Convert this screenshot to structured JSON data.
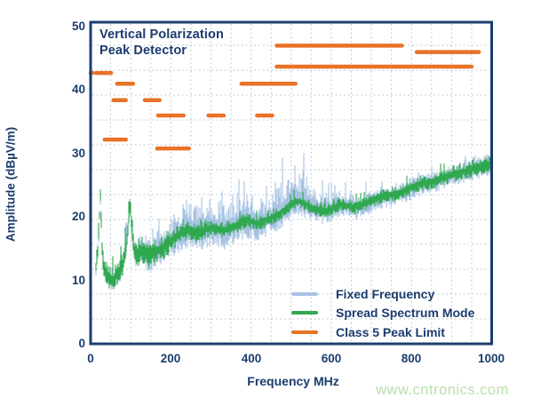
{
  "header": {
    "title_lines": [
      "Vertical Polarization",
      "Peak Detector"
    ]
  },
  "watermark": {
    "text": "www.cntronics.com",
    "color": "#b9dfae"
  },
  "colors": {
    "text_navy": "#1b3c6e",
    "frame": "#1b3c6e",
    "grid": "#b6c0ca",
    "background": "#ffffff"
  },
  "chart_data": {
    "type": "line",
    "title": "Vertical Polarization Peak Detector",
    "xlabel": "Frequency MHz",
    "ylabel": "Amplitude (dBµV/m)",
    "xlim": [
      0,
      1000
    ],
    "ylim": [
      0,
      50
    ],
    "x_ticks": [
      0,
      200,
      400,
      600,
      800,
      1000
    ],
    "y_ticks": [
      0,
      10,
      20,
      30,
      40,
      50
    ],
    "grid": {
      "vertical_step_mhz": 50,
      "style": "dotted",
      "legend_position": "inside bottom-right"
    },
    "series": [
      {
        "name": "Fixed Frequency",
        "color": "#a7c3e3",
        "type": "noisy-spectrum-band",
        "center": [
          [
            13,
            12
          ],
          [
            18,
            15
          ],
          [
            22,
            20
          ],
          [
            24,
            23.5
          ],
          [
            26,
            21
          ],
          [
            28,
            16
          ],
          [
            31,
            13
          ],
          [
            35,
            11.5
          ],
          [
            40,
            11
          ],
          [
            46,
            10.3
          ],
          [
            52,
            10
          ],
          [
            58,
            10.2
          ],
          [
            64,
            10.8
          ],
          [
            70,
            11.3
          ],
          [
            76,
            12
          ],
          [
            82,
            13
          ],
          [
            88,
            15
          ],
          [
            93,
            18
          ],
          [
            96,
            21.5
          ],
          [
            99,
            22.5
          ],
          [
            102,
            19
          ],
          [
            106,
            16
          ],
          [
            110,
            14.8
          ],
          [
            116,
            14.3
          ],
          [
            122,
            14.6
          ],
          [
            128,
            14.9
          ],
          [
            134,
            15
          ],
          [
            140,
            14
          ],
          [
            146,
            13.8
          ],
          [
            152,
            14.2
          ],
          [
            158,
            14.5
          ],
          [
            165,
            14.8
          ],
          [
            172,
            15
          ],
          [
            180,
            15.3
          ],
          [
            190,
            15.8
          ],
          [
            200,
            16.3
          ],
          [
            212,
            17
          ],
          [
            224,
            17.6
          ],
          [
            236,
            18
          ],
          [
            250,
            18
          ],
          [
            264,
            17.6
          ],
          [
            278,
            17.8
          ],
          [
            292,
            18.2
          ],
          [
            306,
            18.4
          ],
          [
            320,
            18.2
          ],
          [
            334,
            18
          ],
          [
            348,
            18.4
          ],
          [
            362,
            18.8
          ],
          [
            376,
            19.2
          ],
          [
            390,
            19.6
          ],
          [
            404,
            19.3
          ],
          [
            418,
            19
          ],
          [
            432,
            19.4
          ],
          [
            446,
            19.8
          ],
          [
            460,
            20.2
          ],
          [
            474,
            20.8
          ],
          [
            488,
            21.4
          ],
          [
            502,
            22.2
          ],
          [
            516,
            22.6
          ],
          [
            530,
            22.3
          ],
          [
            544,
            21.8
          ],
          [
            558,
            21.4
          ],
          [
            572,
            21.2
          ],
          [
            586,
            21
          ],
          [
            600,
            21.3
          ],
          [
            614,
            21.8
          ],
          [
            628,
            22.1
          ],
          [
            642,
            21.8
          ],
          [
            656,
            21.5
          ],
          [
            670,
            21.8
          ],
          [
            684,
            22.2
          ],
          [
            698,
            22.6
          ],
          [
            712,
            23
          ],
          [
            726,
            23.3
          ],
          [
            740,
            23.5
          ],
          [
            754,
            23.6
          ],
          [
            768,
            23.9
          ],
          [
            782,
            24.2
          ],
          [
            796,
            24.6
          ],
          [
            810,
            25
          ],
          [
            824,
            25.3
          ],
          [
            838,
            25.5
          ],
          [
            852,
            25.7
          ],
          [
            866,
            26
          ],
          [
            880,
            26.3
          ],
          [
            894,
            26.6
          ],
          [
            908,
            26.9
          ],
          [
            922,
            27.1
          ],
          [
            936,
            27.3
          ],
          [
            950,
            27.6
          ],
          [
            964,
            27.9
          ],
          [
            978,
            28.2
          ],
          [
            1000,
            28.4
          ]
        ],
        "up_amp": [
          [
            13,
            1
          ],
          [
            30,
            1.2
          ],
          [
            60,
            1.2
          ],
          [
            85,
            2
          ],
          [
            95,
            2.5
          ],
          [
            110,
            2.5
          ],
          [
            140,
            3
          ],
          [
            180,
            3.5
          ],
          [
            220,
            4.5
          ],
          [
            260,
            5
          ],
          [
            300,
            4.5
          ],
          [
            340,
            5
          ],
          [
            380,
            4
          ],
          [
            420,
            4
          ],
          [
            460,
            4.5
          ],
          [
            500,
            5
          ],
          [
            530,
            5.5
          ],
          [
            560,
            4
          ],
          [
            600,
            2.5
          ],
          [
            650,
            2
          ],
          [
            700,
            1.8
          ],
          [
            800,
            1.5
          ],
          [
            1000,
            1.5
          ]
        ],
        "down_amp": [
          [
            13,
            1.5
          ],
          [
            60,
            1.5
          ],
          [
            120,
            2.5
          ],
          [
            200,
            3
          ],
          [
            300,
            3.2
          ],
          [
            400,
            3
          ],
          [
            500,
            2.5
          ],
          [
            600,
            2.2
          ],
          [
            800,
            2
          ],
          [
            1000,
            2
          ]
        ]
      },
      {
        "name": "Spread Spectrum Mode",
        "color": "#2fa84f",
        "type": "noisy-spectrum-band",
        "center": [
          [
            13,
            12
          ],
          [
            18,
            15
          ],
          [
            22,
            20
          ],
          [
            24,
            23.5
          ],
          [
            26,
            21
          ],
          [
            28,
            16
          ],
          [
            31,
            13
          ],
          [
            35,
            11.5
          ],
          [
            40,
            11
          ],
          [
            46,
            10.3
          ],
          [
            52,
            10
          ],
          [
            58,
            10.2
          ],
          [
            64,
            10.8
          ],
          [
            70,
            11.3
          ],
          [
            76,
            12
          ],
          [
            82,
            13
          ],
          [
            88,
            15
          ],
          [
            93,
            18
          ],
          [
            96,
            21.5
          ],
          [
            99,
            22.5
          ],
          [
            102,
            19
          ],
          [
            106,
            16
          ],
          [
            110,
            14.8
          ],
          [
            116,
            14.3
          ],
          [
            122,
            14.6
          ],
          [
            128,
            14.9
          ],
          [
            134,
            15
          ],
          [
            140,
            14
          ],
          [
            146,
            13.8
          ],
          [
            152,
            14.2
          ],
          [
            158,
            14.5
          ],
          [
            165,
            14.8
          ],
          [
            172,
            15
          ],
          [
            180,
            15.3
          ],
          [
            190,
            15.8
          ],
          [
            200,
            16.3
          ],
          [
            212,
            17
          ],
          [
            224,
            17.6
          ],
          [
            236,
            18
          ],
          [
            250,
            18
          ],
          [
            264,
            17.6
          ],
          [
            278,
            17.8
          ],
          [
            292,
            18.2
          ],
          [
            306,
            18.4
          ],
          [
            320,
            18.2
          ],
          [
            334,
            18
          ],
          [
            348,
            18.4
          ],
          [
            362,
            18.8
          ],
          [
            376,
            19.2
          ],
          [
            390,
            19.6
          ],
          [
            404,
            19.3
          ],
          [
            418,
            19
          ],
          [
            432,
            19.4
          ],
          [
            446,
            19.8
          ],
          [
            460,
            20.2
          ],
          [
            474,
            20.8
          ],
          [
            488,
            21.4
          ],
          [
            502,
            22.2
          ],
          [
            516,
            22.6
          ],
          [
            530,
            22.3
          ],
          [
            544,
            21.8
          ],
          [
            558,
            21.4
          ],
          [
            572,
            21.2
          ],
          [
            586,
            21
          ],
          [
            600,
            21.3
          ],
          [
            614,
            21.8
          ],
          [
            628,
            22.1
          ],
          [
            642,
            21.8
          ],
          [
            656,
            21.5
          ],
          [
            670,
            21.8
          ],
          [
            684,
            22.2
          ],
          [
            698,
            22.6
          ],
          [
            712,
            23
          ],
          [
            726,
            23.3
          ],
          [
            740,
            23.5
          ],
          [
            754,
            23.6
          ],
          [
            768,
            23.9
          ],
          [
            782,
            24.2
          ],
          [
            796,
            24.6
          ],
          [
            810,
            25
          ],
          [
            824,
            25.3
          ],
          [
            838,
            25.5
          ],
          [
            852,
            25.7
          ],
          [
            866,
            26
          ],
          [
            880,
            26.3
          ],
          [
            894,
            26.6
          ],
          [
            908,
            26.9
          ],
          [
            922,
            27.1
          ],
          [
            936,
            27.3
          ],
          [
            950,
            27.6
          ],
          [
            964,
            27.9
          ],
          [
            978,
            28.2
          ],
          [
            1000,
            28.4
          ]
        ],
        "up_amp": [
          [
            13,
            1.5
          ],
          [
            30,
            2
          ],
          [
            90,
            2.2
          ],
          [
            120,
            2
          ],
          [
            200,
            1.5
          ],
          [
            300,
            1.2
          ],
          [
            450,
            1.1
          ],
          [
            600,
            1.1
          ],
          [
            800,
            1.2
          ],
          [
            1000,
            1.4
          ]
        ],
        "down_amp": [
          [
            13,
            1.5
          ],
          [
            40,
            1.5
          ],
          [
            90,
            2
          ],
          [
            130,
            2.5
          ],
          [
            200,
            2
          ],
          [
            300,
            1.5
          ],
          [
            450,
            1.2
          ],
          [
            600,
            1.2
          ],
          [
            800,
            1.3
          ],
          [
            1000,
            1.5
          ]
        ]
      },
      {
        "name": "Class 5 Peak Limit",
        "color": "#e87226",
        "type": "limit-segments",
        "segments_mhz_db": [
          [
            0,
            5,
            42.7
          ],
          [
            14,
            51,
            42.7
          ],
          [
            66,
            106,
            41.0
          ],
          [
            376,
            511,
            41.0
          ],
          [
            57,
            88,
            38.4
          ],
          [
            135,
            172,
            38.4
          ],
          [
            168,
            232,
            36.0
          ],
          [
            294,
            332,
            36.0
          ],
          [
            415,
            453,
            36.0
          ],
          [
            35,
            88,
            32.2
          ],
          [
            166,
            245,
            30.8
          ],
          [
            464,
            776,
            47.0
          ],
          [
            813,
            968,
            46.0
          ],
          [
            464,
            950,
            43.7
          ]
        ]
      }
    ]
  }
}
